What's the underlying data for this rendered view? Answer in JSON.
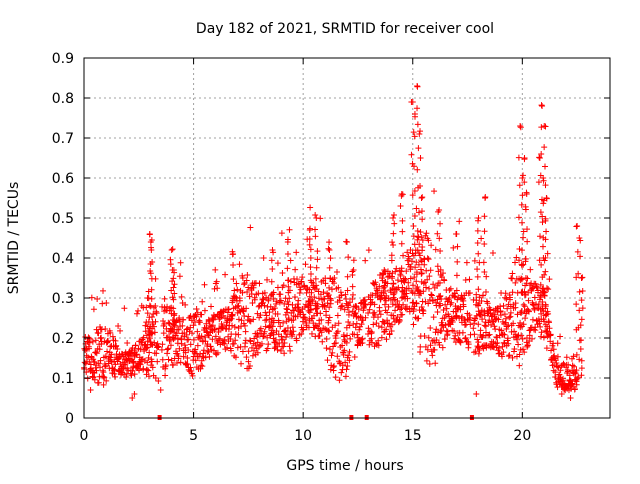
{
  "chart_data": {
    "type": "scatter",
    "title": "Day 182 of 2021, SRMTID for receiver cool",
    "xlabel": "GPS time / hours",
    "ylabel": "SRMTID / TECUs",
    "xlim": [
      0,
      24
    ],
    "ylim": [
      0,
      0.9
    ],
    "x_ticks": [
      0,
      5,
      10,
      15,
      20
    ],
    "x_tick_labels": [
      "0",
      "5",
      "10",
      "15",
      "20"
    ],
    "y_ticks": [
      0,
      0.1,
      0.2,
      0.3,
      0.4,
      0.5,
      0.6,
      0.7,
      0.8,
      0.9
    ],
    "y_tick_labels": [
      "0",
      "0.1",
      "0.2",
      "0.3",
      "0.4",
      "0.5",
      "0.6",
      "0.7",
      "0.8",
      "0.9"
    ],
    "grid": true,
    "marker": "plus",
    "series_color": "#ff0000",
    "base_level": [
      {
        "x": 0.0,
        "y": 0.15
      },
      {
        "x": 1.0,
        "y": 0.16
      },
      {
        "x": 2.0,
        "y": 0.13
      },
      {
        "x": 3.0,
        "y": 0.18
      },
      {
        "x": 4.0,
        "y": 0.2
      },
      {
        "x": 5.0,
        "y": 0.18
      },
      {
        "x": 6.0,
        "y": 0.21
      },
      {
        "x": 7.0,
        "y": 0.23
      },
      {
        "x": 8.0,
        "y": 0.24
      },
      {
        "x": 9.0,
        "y": 0.25
      },
      {
        "x": 10.0,
        "y": 0.28
      },
      {
        "x": 11.0,
        "y": 0.26
      },
      {
        "x": 12.0,
        "y": 0.2
      },
      {
        "x": 13.0,
        "y": 0.25
      },
      {
        "x": 14.0,
        "y": 0.29
      },
      {
        "x": 15.0,
        "y": 0.33
      },
      {
        "x": 16.0,
        "y": 0.28
      },
      {
        "x": 17.0,
        "y": 0.25
      },
      {
        "x": 18.0,
        "y": 0.24
      },
      {
        "x": 19.0,
        "y": 0.22
      },
      {
        "x": 20.0,
        "y": 0.27
      },
      {
        "x": 21.0,
        "y": 0.26
      },
      {
        "x": 21.6,
        "y": 0.1
      },
      {
        "x": 22.5,
        "y": 0.1
      }
    ],
    "spikes": [
      {
        "x": 2.9,
        "y": 0.3
      },
      {
        "x": 3.0,
        "y": 0.46
      },
      {
        "x": 3.05,
        "y": 0.44
      },
      {
        "x": 4.0,
        "y": 0.42
      },
      {
        "x": 4.1,
        "y": 0.37
      },
      {
        "x": 6.8,
        "y": 0.41
      },
      {
        "x": 8.6,
        "y": 0.42
      },
      {
        "x": 9.3,
        "y": 0.44
      },
      {
        "x": 10.3,
        "y": 0.47
      },
      {
        "x": 10.6,
        "y": 0.5
      },
      {
        "x": 11.2,
        "y": 0.42
      },
      {
        "x": 12.0,
        "y": 0.44
      },
      {
        "x": 12.3,
        "y": 0.37
      },
      {
        "x": 13.7,
        "y": 0.37
      },
      {
        "x": 14.1,
        "y": 0.5
      },
      {
        "x": 14.5,
        "y": 0.56
      },
      {
        "x": 15.0,
        "y": 0.79
      },
      {
        "x": 15.2,
        "y": 0.83
      },
      {
        "x": 15.1,
        "y": 0.76
      },
      {
        "x": 15.3,
        "y": 0.71
      },
      {
        "x": 15.4,
        "y": 0.55
      },
      {
        "x": 16.2,
        "y": 0.52
      },
      {
        "x": 17.0,
        "y": 0.46
      },
      {
        "x": 18.3,
        "y": 0.55
      },
      {
        "x": 18.0,
        "y": 0.5
      },
      {
        "x": 19.9,
        "y": 0.73
      },
      {
        "x": 20.1,
        "y": 0.65
      },
      {
        "x": 20.2,
        "y": 0.56
      },
      {
        "x": 20.0,
        "y": 0.6
      },
      {
        "x": 20.9,
        "y": 0.78
      },
      {
        "x": 21.0,
        "y": 0.73
      },
      {
        "x": 20.8,
        "y": 0.65
      },
      {
        "x": 20.95,
        "y": 0.6
      },
      {
        "x": 21.1,
        "y": 0.55
      },
      {
        "x": 22.5,
        "y": 0.48
      },
      {
        "x": 22.6,
        "y": 0.45
      },
      {
        "x": 22.7,
        "y": 0.35
      }
    ],
    "low_points": [
      {
        "x": 2.2,
        "y": 0.05
      },
      {
        "x": 2.3,
        "y": 0.06
      },
      {
        "x": 0.3,
        "y": 0.07
      },
      {
        "x": 3.5,
        "y": 0.07
      },
      {
        "x": 17.9,
        "y": 0.06
      },
      {
        "x": 22.2,
        "y": 0.05
      },
      {
        "x": 21.8,
        "y": 0.06
      }
    ],
    "gap_markers": [
      {
        "x": 3.45,
        "y": 0
      },
      {
        "x": 12.2,
        "y": 0
      },
      {
        "x": 12.9,
        "y": 0
      },
      {
        "x": 17.7,
        "y": 0
      }
    ]
  }
}
